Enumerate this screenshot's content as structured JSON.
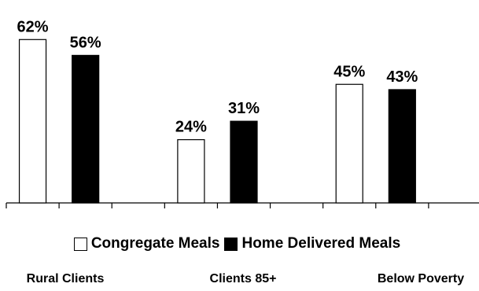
{
  "chart_data": {
    "type": "bar",
    "categories": [
      "Rural Clients",
      "Clients 85+",
      "Below Poverty"
    ],
    "series": [
      {
        "name": "Congregate Meals",
        "values": [
          62,
          24,
          45
        ],
        "value_labels": [
          "62%",
          "24%",
          "45%"
        ],
        "color": "#ffffff"
      },
      {
        "name": "Home Delivered Meals",
        "values": [
          56,
          31,
          43
        ],
        "value_labels": [
          "56%",
          "31%",
          "43%"
        ],
        "color": "#000000"
      }
    ],
    "ylim": [
      0,
      100
    ],
    "grid": false,
    "legend_position": "bottom"
  }
}
